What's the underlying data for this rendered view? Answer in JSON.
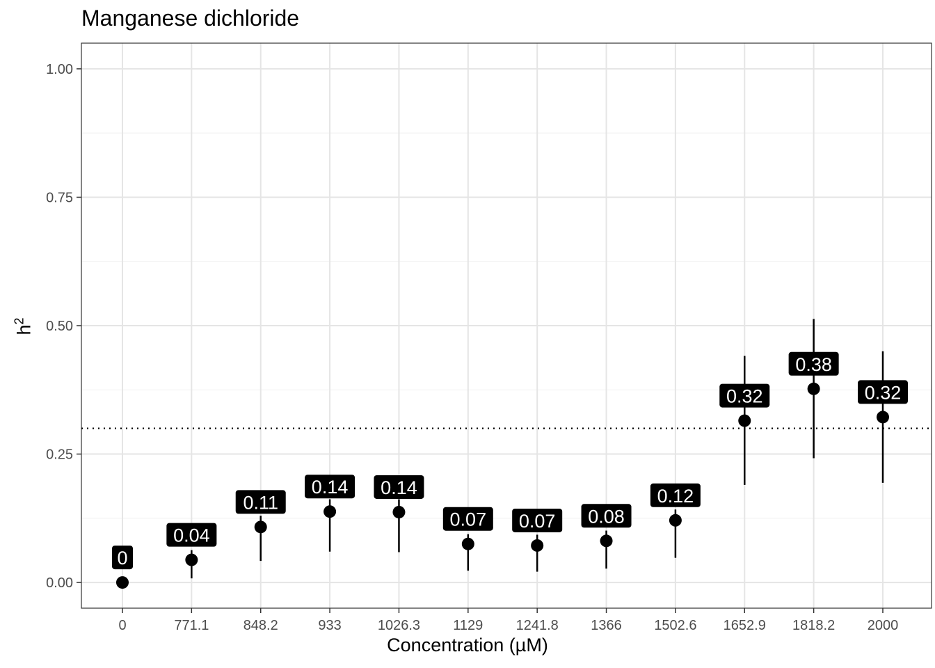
{
  "chart_data": {
    "type": "scatter",
    "title": "Manganese dichloride",
    "xlabel_main": "Concentration (µM)",
    "ylabel_base": "h",
    "ylabel_sup": "2",
    "categories": [
      "0",
      "771.1",
      "848.2",
      "933",
      "1026.3",
      "1129",
      "1241.8",
      "1366",
      "1502.6",
      "1652.9",
      "1818.2",
      "2000"
    ],
    "values": [
      0.0,
      0.044,
      0.108,
      0.138,
      0.137,
      0.075,
      0.072,
      0.081,
      0.121,
      0.315,
      0.377,
      0.322
    ],
    "lower": [
      0.0,
      0.008,
      0.042,
      0.06,
      0.059,
      0.023,
      0.021,
      0.027,
      0.048,
      0.19,
      0.242,
      0.194
    ],
    "upper": [
      0.0,
      0.063,
      0.13,
      0.162,
      0.162,
      0.094,
      0.093,
      0.101,
      0.142,
      0.441,
      0.513,
      0.45
    ],
    "point_labels": [
      "0",
      "0.04",
      "0.11",
      "0.14",
      "0.14",
      "0.07",
      "0.07",
      "0.08",
      "0.12",
      "0.32",
      "0.38",
      "0.32"
    ],
    "yticks": [
      "0.00",
      "0.25",
      "0.50",
      "0.75",
      "1.00"
    ],
    "ylim": [
      -0.05,
      1.05
    ],
    "threshold": 0.3,
    "grid": true,
    "colors": {
      "point": "#000000",
      "label_bg": "#000000",
      "label_text": "#ffffff",
      "grid_major": "#e5e5e5",
      "grid_minor": "#f2f2f2",
      "panel_border": "#333333"
    }
  }
}
